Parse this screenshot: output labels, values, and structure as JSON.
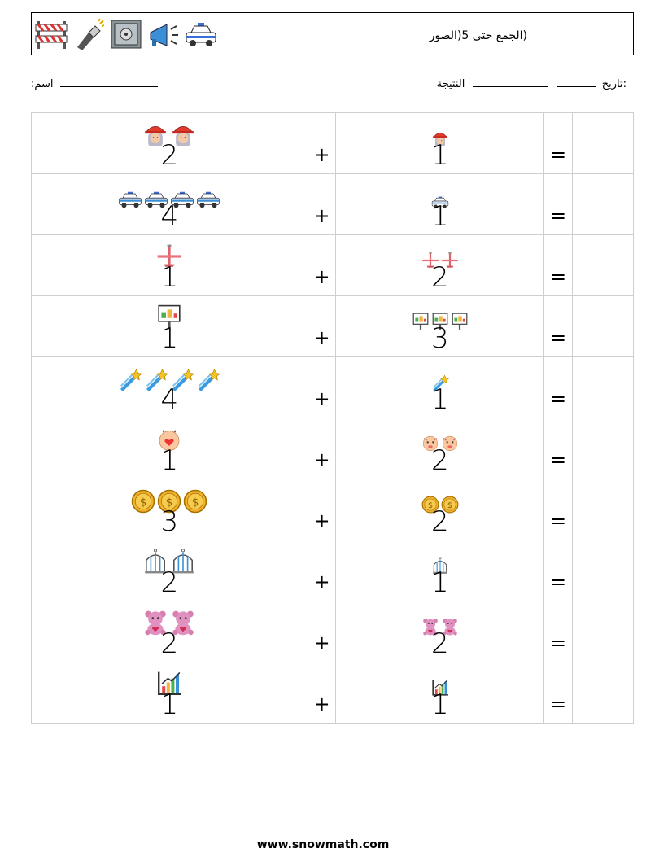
{
  "header": {
    "title": "(الجمع حتى 5(الصور",
    "icons": [
      "barrier-icon",
      "flashlight-icon",
      "safe-icon",
      "megaphone-icon",
      "police-car-icon"
    ]
  },
  "meta": {
    "name_label": ":اسم",
    "date_label": ":تاريخ",
    "score_label": "النتيجة"
  },
  "operators": {
    "plus": "+",
    "equals": "="
  },
  "rows": [
    {
      "left": {
        "count": "2",
        "icon": "firefighter-icon"
      },
      "right": {
        "count": "1",
        "icon": "firefighter-icon"
      }
    },
    {
      "left": {
        "count": "4",
        "icon": "police-car-icon"
      },
      "right": {
        "count": "1",
        "icon": "police-car-icon"
      }
    },
    {
      "left": {
        "count": "1",
        "icon": "airplane-icon"
      },
      "right": {
        "count": "2",
        "icon": "airplane-icon"
      }
    },
    {
      "left": {
        "count": "1",
        "icon": "billboard-icon"
      },
      "right": {
        "count": "3",
        "icon": "billboard-icon"
      }
    },
    {
      "left": {
        "count": "4",
        "icon": "shooting-star-icon"
      },
      "right": {
        "count": "1",
        "icon": "shooting-star-icon"
      }
    },
    {
      "left": {
        "count": "1",
        "icon": "love-face-icon"
      },
      "right": {
        "count": "2",
        "icon": "smile-face-icon"
      }
    },
    {
      "left": {
        "count": "3",
        "icon": "coin-icon"
      },
      "right": {
        "count": "2",
        "icon": "coin-icon"
      }
    },
    {
      "left": {
        "count": "2",
        "icon": "birdcage-icon"
      },
      "right": {
        "count": "1",
        "icon": "birdcage-icon"
      }
    },
    {
      "left": {
        "count": "2",
        "icon": "teddy-bear-icon"
      },
      "right": {
        "count": "2",
        "icon": "teddy-bear-icon"
      }
    },
    {
      "left": {
        "count": "1",
        "icon": "bar-chart-icon"
      },
      "right": {
        "count": "1",
        "icon": "bar-chart-icon"
      }
    }
  ],
  "footer": {
    "url": "www.snowmath.com"
  }
}
